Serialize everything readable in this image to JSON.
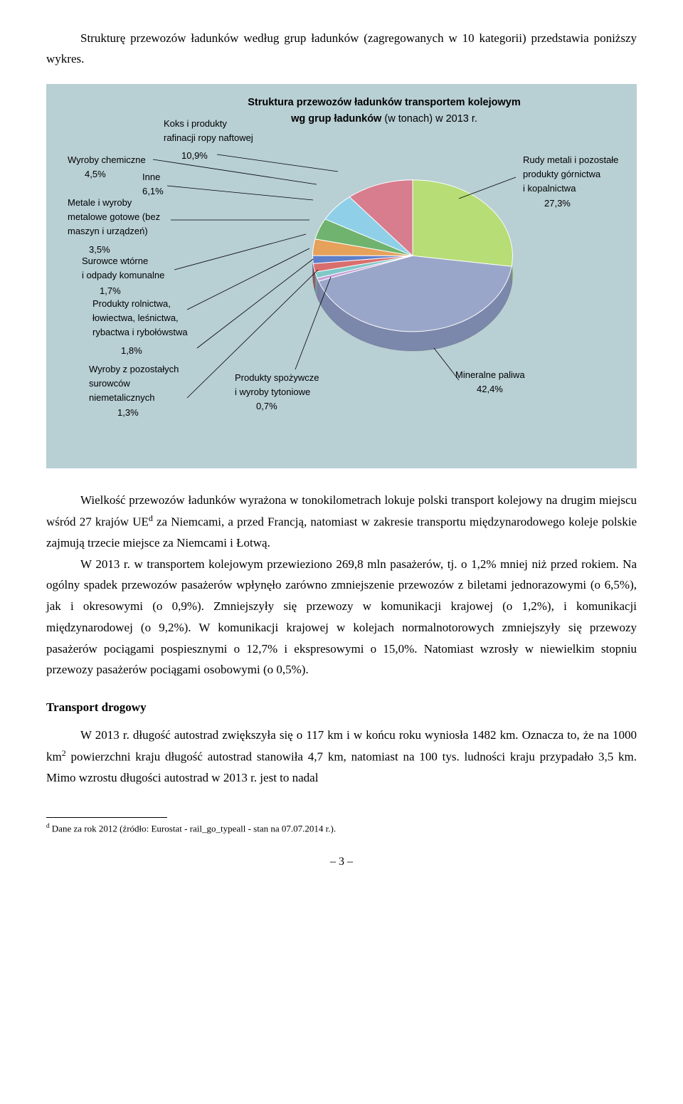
{
  "intro": "Strukturę przewozów ładunków według grup ładunków (zagregowanych w 10 kategorii) przedstawia poniższy wykres.",
  "chart": {
    "type": "pie",
    "title_bold": "Struktura przewozów ładunków transportem kolejowym",
    "title_line2_bold": "wg grup ładunków",
    "title_line2_rest": " (w tonach) w 2013 r.",
    "background_color": "#b8cfd4",
    "slices": [
      {
        "label": "Rudy metali i pozostałe\nprodukty górnictwa\ni kopalnictwa",
        "value": 27.3,
        "color": "#b7dd77"
      },
      {
        "label": "Mineralne paliwa",
        "value": 42.4,
        "color": "#9aa6c9"
      },
      {
        "label": "Produkty spożywcze\ni wyroby tytoniowe",
        "value": 0.7,
        "color": "#c8a0d8"
      },
      {
        "label": "Wyroby z pozostałych\nsurowców\nniemetalicznych",
        "value": 1.3,
        "color": "#7fc8c8"
      },
      {
        "label": "Produkty rolnictwa,\nłowiectwa, leśnictwa,\nrybactwa i rybołówstwa",
        "value": 1.8,
        "color": "#d96e6e"
      },
      {
        "label": "Surowce wtórne\ni odpady komunalne",
        "value": 1.7,
        "color": "#5f7fc9"
      },
      {
        "label": "Metale i wyroby\nmetalowe gotowe (bez\nmaszyn i urządzeń)",
        "value": 3.5,
        "color": "#e6a15a"
      },
      {
        "label": "Wyroby chemiczne",
        "value": 4.5,
        "color": "#6fb36f"
      },
      {
        "label": "Inne",
        "value": 6.1,
        "color": "#8fd0e8"
      },
      {
        "label": "Koks i produkty\nrafinacji ropy naftowej",
        "value": 10.9,
        "color": "#d87d8e"
      }
    ],
    "label_font": "Arial",
    "label_fontsize": 13,
    "start_angle_deg": -90
  },
  "labels": {
    "l_koks": "Koks i produkty\nrafinacji ropy naftowej",
    "l_koks_pct": "10,9%",
    "l_chem": "Wyroby chemiczne",
    "l_chem_pct": "4,5%",
    "l_inne": "Inne",
    "l_inne_pct": "6,1%",
    "l_metale": "Metale i wyroby\nmetalowe gotowe (bez\nmaszyn i urządzeń)",
    "l_metale_pct": "3,5%",
    "l_surowce": "Surowce wtórne\ni odpady komunalne",
    "l_surowce_pct": "1,7%",
    "l_rol": "Produkty rolnictwa,\nłowiectwa, leśnictwa,\nrybactwa i rybołówstwa",
    "l_rol_pct": "1,8%",
    "l_wyroby": "Wyroby z pozostałych\nsurowców\nniemetalicznych",
    "l_wyroby_pct": "1,3%",
    "l_spoz": "Produkty spożywcze\ni wyroby tytoniowe",
    "l_spoz_pct": "0,7%",
    "l_rudy": "Rudy metali i pozostałe\nprodukty górnictwa\ni kopalnictwa",
    "l_rudy_pct": "27,3%",
    "l_mineral": "Mineralne paliwa",
    "l_mineral_pct": "42,4%"
  },
  "para1": "Wielkość przewozów ładunków wyrażona w tonokilometrach lokuje polski transport kolejowy na drugim miejscu wśród 27 krajów UE",
  "para1_sup": "d",
  "para1_cont": " za Niemcami, a przed Francją, natomiast w zakresie transportu międzynarodowego koleje polskie zajmują trzecie miejsce za Niemcami i Łotwą.",
  "para2": "W 2013 r. w transportem kolejowym przewieziono 269,8 mln pasażerów, tj. o 1,2% mniej niż przed rokiem. Na ogólny spadek przewozów pasażerów wpłynęło zarówno zmniejszenie przewozów z biletami jednorazowymi (o 6,5%), jak i okresowymi (o 0,9%). Zmniejszyły się przewozy w komunikacji krajowej (o 1,2%), i komunikacji międzynarodowej (o 9,2%). W komunikacji krajowej w kolejach normalnotorowych zmniejszyły się przewozy pasażerów pociągami pospiesznymi o 12,7% i ekspresowymi o 15,0%. Natomiast wzrosły w niewielkim stopniu przewozy pasażerów pociągami osobowymi (o 0,5%).",
  "section_heading": "Transport drogowy",
  "para3a": "W 2013 r. długość autostrad zwiększyła się o 117 km i w końcu roku wyniosła 1482 km. Oznacza to, że na 1000 km",
  "para3_sup": "2",
  "para3b": " powierzchni kraju długość autostrad stanowiła 4,7 km, natomiast na 100 tys. ludności kraju przypadało 3,5 km. Mimo wzrostu długości autostrad w 2013 r. jest to nadal",
  "footnote_marker": "d",
  "footnote_text": " Dane za rok 2012 (źródło: Eurostat - rail_go_typeall - stan na 07.07.2014 r.).",
  "page_num": "– 3 –"
}
